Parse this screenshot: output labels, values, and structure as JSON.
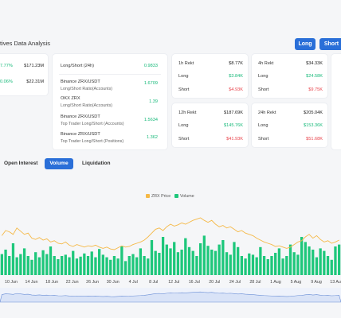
{
  "header": {
    "title": "tives Data Analysis",
    "long_label": "Long",
    "short_label": "Short"
  },
  "left_card": {
    "rows": [
      {
        "pct": "7.77%",
        "value": "$171.23M"
      },
      {
        "pct": "0.06%",
        "value": "$22.31M"
      }
    ]
  },
  "ratio_card": {
    "title": "Long/Short (24h)",
    "title_value": "0.9833",
    "items": [
      {
        "line1": "Binance ZRX/USDT",
        "line2": "Long/Short Ratio(Accounts)",
        "value": "1.6709"
      },
      {
        "line1": "OKX ZRX",
        "line2": "Long/Short Ratio(Accounts)",
        "value": "1.39"
      },
      {
        "line1": "Binance ZRX/USDT",
        "line2": "Top Trader Long/Short (Accounts)",
        "value": "1.5634"
      },
      {
        "line1": "Binance ZRX/USDT",
        "line2": "Top Trader Long/Short (Positions)",
        "value": "1.362"
      }
    ]
  },
  "rekt": {
    "h1": {
      "label": "1h Rekt",
      "total": "$8.77K",
      "long_label": "Long",
      "long": "$3.84K",
      "short_label": "Short",
      "short": "$4.93K"
    },
    "h4": {
      "label": "4h Rekt",
      "total": "$34.33K",
      "long_label": "Long",
      "long": "$24.58K",
      "short_label": "Short",
      "short": "$9.75K"
    },
    "h12": {
      "label": "12h Rekt",
      "total": "$187.69K",
      "long_label": "Long",
      "long": "$145.76K",
      "short_label": "Short",
      "short": "$41.93K"
    },
    "h24": {
      "label": "24h Rekt",
      "total": "$205.04K",
      "long_label": "Long",
      "long": "$153.36K",
      "short_label": "Short",
      "short": "$51.68K"
    }
  },
  "tabs": [
    {
      "label": "Open Interest"
    },
    {
      "label": "Volume"
    },
    {
      "label": "Liquidation"
    }
  ],
  "chart_data": {
    "type": "bar",
    "legend": [
      "ZRX Price",
      "Volume"
    ],
    "colors": {
      "price": "#f5b947",
      "volume": "#1ec77b",
      "navigator": "#6b8fd6"
    },
    "x_ticks": [
      "10 Jun",
      "14 Jun",
      "18 Jun",
      "22 Jun",
      "26 Jun",
      "30 Jun",
      "4 Jul",
      "8 Jul",
      "12 Jul",
      "16 Jul",
      "20 Jul",
      "24 Jul",
      "28 Jul",
      "1 Aug",
      "5 Aug",
      "9 Aug",
      "13 Aug"
    ],
    "volume": [
      0.33,
      0.4,
      0.3,
      0.5,
      0.28,
      0.33,
      0.42,
      0.3,
      0.24,
      0.36,
      0.28,
      0.39,
      0.33,
      0.45,
      0.3,
      0.25,
      0.3,
      0.32,
      0.28,
      0.38,
      0.26,
      0.29,
      0.34,
      0.3,
      0.37,
      0.28,
      0.41,
      0.32,
      0.28,
      0.24,
      0.3,
      0.26,
      0.45,
      0.22,
      0.3,
      0.33,
      0.28,
      0.42,
      0.3,
      0.26,
      0.55,
      0.38,
      0.35,
      0.6,
      0.48,
      0.42,
      0.52,
      0.36,
      0.4,
      0.58,
      0.44,
      0.38,
      0.3,
      0.5,
      0.62,
      0.46,
      0.4,
      0.38,
      0.48,
      0.55,
      0.36,
      0.32,
      0.52,
      0.44,
      0.3,
      0.26,
      0.34,
      0.32,
      0.28,
      0.44,
      0.3,
      0.25,
      0.3,
      0.35,
      0.42,
      0.26,
      0.3,
      0.48,
      0.36,
      0.32,
      0.6,
      0.52,
      0.45,
      0.4,
      0.28,
      0.42,
      0.38,
      0.3,
      0.24,
      0.45,
      0.48
    ],
    "price": [
      0.62,
      0.7,
      0.68,
      0.64,
      0.74,
      0.69,
      0.64,
      0.66,
      0.58,
      0.56,
      0.59,
      0.55,
      0.57,
      0.52,
      0.54,
      0.5,
      0.49,
      0.52,
      0.47,
      0.45,
      0.48,
      0.46,
      0.44,
      0.46,
      0.45,
      0.47,
      0.44,
      0.42,
      0.44,
      0.41,
      0.4,
      0.43,
      0.46,
      0.44,
      0.45,
      0.48,
      0.5,
      0.52,
      0.55,
      0.6,
      0.66,
      0.72,
      0.74,
      0.7,
      0.76,
      0.8,
      0.77,
      0.79,
      0.82,
      0.8,
      0.83,
      0.86,
      0.88,
      0.9,
      0.86,
      0.83,
      0.86,
      0.8,
      0.76,
      0.78,
      0.74,
      0.76,
      0.72,
      0.68,
      0.7,
      0.66,
      0.64,
      0.62,
      0.58,
      0.55,
      0.52,
      0.5,
      0.48,
      0.45,
      0.46,
      0.44,
      0.42,
      0.44,
      0.48,
      0.52,
      0.54,
      0.6,
      0.64,
      0.58,
      0.62,
      0.56,
      0.52,
      0.54,
      0.5,
      0.52,
      0.55
    ]
  }
}
